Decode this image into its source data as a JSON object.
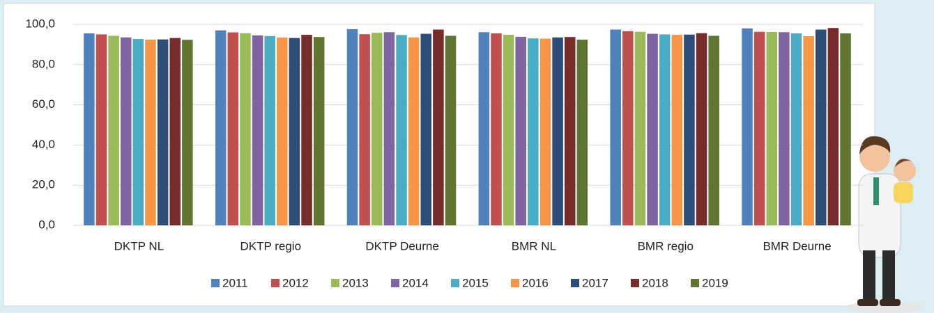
{
  "chart_data": {
    "type": "bar",
    "categories": [
      "DKTP NL",
      "DKTP regio",
      "DKTP Deurne",
      "BMR NL",
      "BMR regio",
      "BMR Deurne"
    ],
    "series": [
      {
        "name": "2011",
        "color": "#4f81bd",
        "values": [
          95.5,
          97.0,
          97.6,
          96.1,
          97.4,
          98.0
        ]
      },
      {
        "name": "2012",
        "color": "#c0504d",
        "values": [
          95.0,
          96.0,
          95.1,
          95.5,
          96.6,
          96.3
        ]
      },
      {
        "name": "2013",
        "color": "#9bbb59",
        "values": [
          94.3,
          95.6,
          95.8,
          94.8,
          96.3,
          96.2
        ]
      },
      {
        "name": "2014",
        "color": "#8064a2",
        "values": [
          93.5,
          94.5,
          96.1,
          93.8,
          95.3,
          96.1
        ]
      },
      {
        "name": "2015",
        "color": "#4bacc6",
        "values": [
          92.7,
          94.2,
          94.7,
          93.0,
          95.0,
          95.5
        ]
      },
      {
        "name": "2016",
        "color": "#f79646",
        "values": [
          92.4,
          93.4,
          93.5,
          92.9,
          94.8,
          94.1
        ]
      },
      {
        "name": "2017",
        "color": "#2c4d75",
        "values": [
          92.5,
          93.2,
          95.3,
          93.5,
          94.9,
          97.4
        ]
      },
      {
        "name": "2018",
        "color": "#772c2a",
        "values": [
          93.2,
          94.8,
          97.4,
          93.7,
          95.6,
          98.2
        ]
      },
      {
        "name": "2019",
        "color": "#5f7530",
        "values": [
          92.3,
          93.7,
          94.3,
          92.4,
          94.3,
          95.5
        ]
      }
    ],
    "ylim": [
      0,
      100
    ],
    "yticks": [
      {
        "value": 0,
        "label": "0,0"
      },
      {
        "value": 20,
        "label": "20,0"
      },
      {
        "value": 40,
        "label": "40,0"
      },
      {
        "value": 60,
        "label": "60,0"
      },
      {
        "value": 80,
        "label": "80,0"
      },
      {
        "value": 100,
        "label": "100,0"
      }
    ],
    "grid": true,
    "legend": "bottom"
  }
}
